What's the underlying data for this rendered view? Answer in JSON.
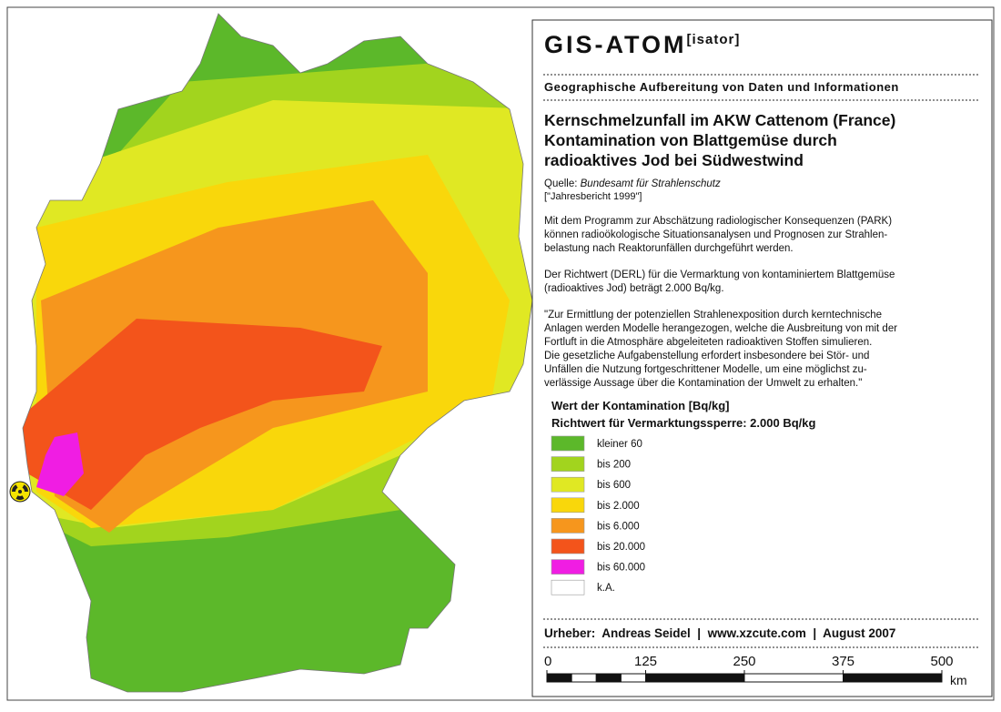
{
  "header": {
    "title": "GIS-ATOM",
    "title_suffix": "[isator]",
    "subtitle": "Geographische Aufbereitung von Daten und Informationen"
  },
  "map_title": [
    "Kernschmelzunfall im AKW Cattenom (France)",
    "Kontamination von Blattgemüse durch",
    "radioaktives Jod bei Südwestwind"
  ],
  "source": {
    "label": "Quelle:",
    "name": "Bundesamt für Strahlenschutz",
    "report": "[\"Jahresbericht 1999\"]"
  },
  "paragraphs": [
    [
      "Mit dem Programm zur Abschätzung radiologischer Konsequenzen (PARK)",
      "können radioökologische Situationsanalysen und Prognosen zur Strahlen-",
      "belastung nach Reaktorunfällen durchgeführt werden."
    ],
    [
      "Der Richtwert (DERL) für die Vermarktung von kontaminiertem Blattgemüse",
      "(radioaktives Jod) beträgt 2.000 Bq/kg."
    ],
    [
      "\"Zur Ermittlung der potenziellen Strahlenexposition durch kerntechnische",
      "Anlagen werden Modelle herangezogen, welche die Ausbreitung von mit der",
      "Fortluft in die Atmosphäre abgeleiteten radioaktiven Stoffen simulieren.",
      "Die gesetzliche Aufgabenstellung erfordert insbesondere bei Stör- und",
      "Unfällen die Nutzung fortgeschrittener Modelle, um eine möglichst zu-",
      "verlässige Aussage über die Kontamination der Umwelt zu erhalten.\""
    ]
  ],
  "legend": {
    "title": "Wert der Kontamination [Bq/kg]",
    "subtitle": "Richtwert für Vermarktungssperre: 2.000 Bq/kg",
    "items": [
      {
        "label": "kleiner 60",
        "color": "#5cb82a"
      },
      {
        "label": "bis 200",
        "color": "#a2d41e"
      },
      {
        "label": "bis 600",
        "color": "#e0e823"
      },
      {
        "label": "bis 2.000",
        "color": "#f9d70b"
      },
      {
        "label": "bis 6.000",
        "color": "#f6961d"
      },
      {
        "label": "bis 20.000",
        "color": "#f3541b"
      },
      {
        "label": "bis 60.000",
        "color": "#f01de3"
      },
      {
        "label": "k.A.",
        "color": "#ffffff"
      }
    ]
  },
  "footer": "Urheber:  Andreas Seidel  |  www.xzcute.com  |  August 2007",
  "scale": {
    "ticks": [
      0,
      125,
      250,
      375,
      500
    ],
    "unit": "km"
  }
}
